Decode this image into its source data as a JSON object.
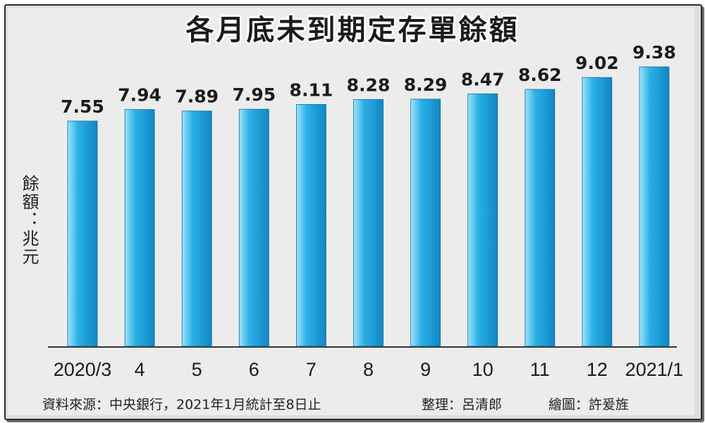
{
  "chart_data": {
    "type": "bar",
    "title": "各月底未到期定存單餘額",
    "ylabel": "餘額：兆元",
    "categories": [
      "2020/3",
      "4",
      "5",
      "6",
      "7",
      "8",
      "9",
      "10",
      "11",
      "12",
      "2021/1"
    ],
    "values": [
      7.55,
      7.94,
      7.89,
      7.95,
      8.11,
      8.28,
      8.29,
      8.47,
      8.62,
      9.02,
      9.38
    ],
    "data_labels": [
      "7.55",
      "7.94",
      "7.89",
      "7.95",
      "8.11",
      "8.28",
      "8.29",
      "8.47",
      "8.62",
      "9.02",
      "9.38"
    ],
    "ylim": [
      0,
      10
    ],
    "grid": false,
    "legend": "none",
    "colors": {
      "bar_light": "#9fe3fb",
      "bar_main": "#2bb0e6",
      "bar_dark": "#1186c3"
    }
  },
  "footer": {
    "source": "資料來源：中央銀行，2021年1月統計至8日止",
    "editor": "整理：呂清郎",
    "artist": "繪圖：許爰旌"
  }
}
